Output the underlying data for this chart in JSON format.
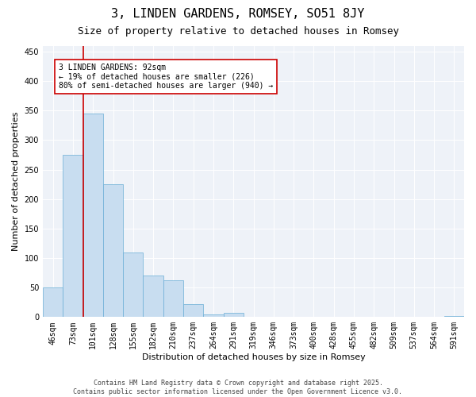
{
  "title": "3, LINDEN GARDENS, ROMSEY, SO51 8JY",
  "subtitle": "Size of property relative to detached houses in Romsey",
  "xlabel": "Distribution of detached houses by size in Romsey",
  "ylabel": "Number of detached properties",
  "categories": [
    "46sqm",
    "73sqm",
    "101sqm",
    "128sqm",
    "155sqm",
    "182sqm",
    "210sqm",
    "237sqm",
    "264sqm",
    "291sqm",
    "319sqm",
    "346sqm",
    "373sqm",
    "400sqm",
    "428sqm",
    "455sqm",
    "482sqm",
    "509sqm",
    "537sqm",
    "564sqm",
    "591sqm"
  ],
  "values": [
    50,
    275,
    345,
    225,
    110,
    70,
    62,
    22,
    5,
    7,
    0,
    1,
    0,
    1,
    0,
    1,
    0,
    0,
    0,
    0,
    2
  ],
  "bar_color": "#c8ddf0",
  "bar_edge_color": "#6aaed6",
  "bar_edge_width": 0.5,
  "vline_pos": 1.5,
  "vline_color": "#cc0000",
  "annotation_text": "3 LINDEN GARDENS: 92sqm\n← 19% of detached houses are smaller (226)\n80% of semi-detached houses are larger (940) →",
  "annotation_box_color": "#cc0000",
  "ylim": [
    0,
    460
  ],
  "yticks": [
    0,
    50,
    100,
    150,
    200,
    250,
    300,
    350,
    400,
    450
  ],
  "bg_color": "#eef2f8",
  "footer_line1": "Contains HM Land Registry data © Crown copyright and database right 2025.",
  "footer_line2": "Contains public sector information licensed under the Open Government Licence v3.0.",
  "title_fontsize": 11,
  "subtitle_fontsize": 9,
  "axis_label_fontsize": 8,
  "tick_fontsize": 7,
  "annotation_fontsize": 7,
  "footer_fontsize": 6
}
